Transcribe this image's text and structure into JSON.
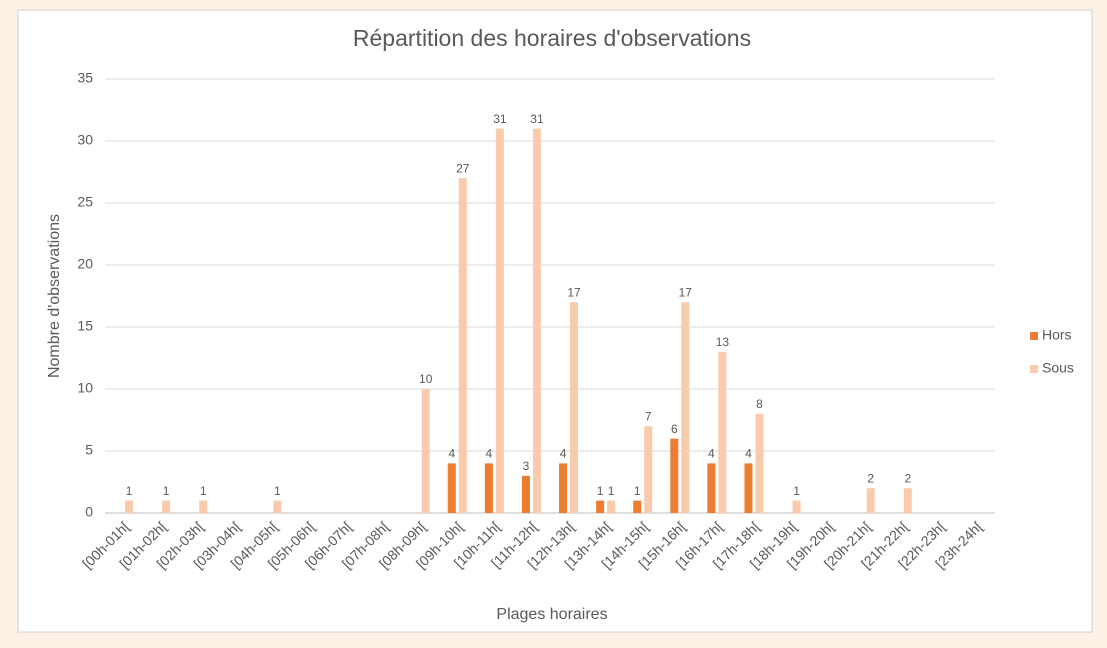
{
  "chart_data": {
    "type": "bar",
    "title": "Répartition des horaires d'observations",
    "x_label": "Plages horaires",
    "y_label": "Nombre d'observations",
    "categories": [
      "[00h-01h[",
      "[01h-02h[",
      "[02h-03h[",
      "[03h-04h[",
      "[04h-05h[",
      "[05h-06h[",
      "[06h-07h[",
      "[07h-08h[",
      "[08h-09h[",
      "[09h-10h[",
      "[10h-11h[",
      "[11h-12h[",
      "[12h-13h[",
      "[13h-14h[",
      "[14h-15h[",
      "[15h-16h[",
      "[16h-17h[",
      "[17h-18h[",
      "[18h-19h[",
      "[19h-20h[",
      "[20h-21h[",
      "[21h-22h[",
      "[22h-23h[",
      "[23h-24h["
    ],
    "series": [
      {
        "name": "Hors",
        "color": "#ed7d31",
        "values": [
          null,
          null,
          null,
          null,
          null,
          null,
          null,
          null,
          null,
          4,
          4,
          3,
          4,
          1,
          1,
          6,
          4,
          4,
          null,
          null,
          null,
          null,
          null,
          null
        ]
      },
      {
        "name": "Sous",
        "color": "#f8cbad",
        "values": [
          1,
          1,
          1,
          null,
          1,
          null,
          null,
          null,
          10,
          27,
          31,
          31,
          17,
          1,
          7,
          17,
          13,
          8,
          1,
          null,
          2,
          2,
          null,
          null
        ]
      }
    ],
    "ylim": [
      0,
      35
    ],
    "yticks": [
      0,
      5,
      10,
      15,
      20,
      25,
      30,
      35
    ],
    "grid": true,
    "legend": "right",
    "data_labels": true
  }
}
